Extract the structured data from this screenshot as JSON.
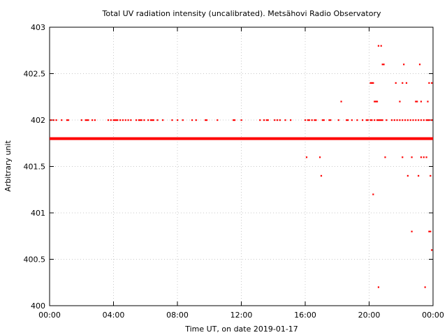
{
  "chart_data": {
    "type": "scatter",
    "title": "Total UV radiation intensity (uncalibrated). Metsähovi Radio Observatory",
    "xlabel": "Time UT, on date 2019-01-17",
    "ylabel": "Arbitrary unit",
    "xlim": [
      "00:00",
      "24:00"
    ],
    "ylim": [
      400,
      403
    ],
    "xticks": [
      "00:00",
      "04:00",
      "08:00",
      "12:00",
      "16:00",
      "20:00",
      "00:00"
    ],
    "yticks": [
      "400",
      "400.5",
      "401",
      "401.5",
      "402",
      "402.5",
      "403"
    ],
    "grid": true,
    "series": [
      {
        "color": "#ff0000",
        "baseline": {
          "y": 401.8,
          "x_range": [
            "00:00",
            "24:00"
          ]
        },
        "points": [
          [
            "00:05",
            402
          ],
          [
            "00:15",
            402
          ],
          [
            "00:25",
            402
          ],
          [
            "00:45",
            402
          ],
          [
            "01:05",
            402
          ],
          [
            "01:10",
            402
          ],
          [
            "02:00",
            402
          ],
          [
            "02:15",
            402
          ],
          [
            "02:20",
            402
          ],
          [
            "02:25",
            402
          ],
          [
            "02:40",
            402
          ],
          [
            "02:50",
            402
          ],
          [
            "03:40",
            402
          ],
          [
            "03:50",
            402
          ],
          [
            "04:00",
            402
          ],
          [
            "04:05",
            402
          ],
          [
            "04:10",
            402
          ],
          [
            "04:15",
            402
          ],
          [
            "04:25",
            402
          ],
          [
            "04:35",
            402
          ],
          [
            "04:45",
            402
          ],
          [
            "04:55",
            402
          ],
          [
            "05:05",
            402
          ],
          [
            "05:25",
            402
          ],
          [
            "05:35",
            402
          ],
          [
            "05:40",
            402
          ],
          [
            "05:45",
            402
          ],
          [
            "05:55",
            402
          ],
          [
            "06:10",
            402
          ],
          [
            "06:20",
            402
          ],
          [
            "06:25",
            402
          ],
          [
            "06:30",
            402
          ],
          [
            "06:45",
            402
          ],
          [
            "07:05",
            402
          ],
          [
            "07:40",
            402
          ],
          [
            "08:00",
            402
          ],
          [
            "08:20",
            402
          ],
          [
            "08:55",
            402
          ],
          [
            "09:10",
            402
          ],
          [
            "09:45",
            402
          ],
          [
            "09:50",
            402
          ],
          [
            "10:30",
            402
          ],
          [
            "11:30",
            402
          ],
          [
            "11:35",
            402
          ],
          [
            "12:00",
            402
          ],
          [
            "13:10",
            402
          ],
          [
            "13:25",
            402
          ],
          [
            "13:35",
            402
          ],
          [
            "13:40",
            402
          ],
          [
            "14:05",
            402
          ],
          [
            "14:15",
            402
          ],
          [
            "14:25",
            402
          ],
          [
            "14:45",
            402
          ],
          [
            "15:05",
            402
          ],
          [
            "16:00",
            402
          ],
          [
            "16:10",
            402
          ],
          [
            "16:15",
            402
          ],
          [
            "16:25",
            402
          ],
          [
            "16:35",
            402
          ],
          [
            "16:40",
            402
          ],
          [
            "17:05",
            402
          ],
          [
            "17:10",
            402
          ],
          [
            "17:30",
            402
          ],
          [
            "17:35",
            402
          ],
          [
            "18:05",
            402
          ],
          [
            "18:35",
            402
          ],
          [
            "18:40",
            402
          ],
          [
            "18:55",
            402
          ],
          [
            "19:15",
            402
          ],
          [
            "19:35",
            402
          ],
          [
            "19:50",
            402
          ],
          [
            "19:55",
            402
          ],
          [
            "20:05",
            402
          ],
          [
            "20:10",
            402
          ],
          [
            "20:20",
            402
          ],
          [
            "20:30",
            402
          ],
          [
            "20:35",
            402
          ],
          [
            "20:45",
            402
          ],
          [
            "20:50",
            402
          ],
          [
            "21:05",
            402
          ],
          [
            "21:25",
            402
          ],
          [
            "21:35",
            402
          ],
          [
            "21:45",
            402
          ],
          [
            "21:55",
            402
          ],
          [
            "22:05",
            402
          ],
          [
            "22:15",
            402
          ],
          [
            "22:25",
            402
          ],
          [
            "22:35",
            402
          ],
          [
            "22:45",
            402
          ],
          [
            "22:55",
            402
          ],
          [
            "23:05",
            402
          ],
          [
            "23:15",
            402
          ],
          [
            "23:25",
            402
          ],
          [
            "23:35",
            402
          ],
          [
            "23:45",
            402
          ],
          [
            "23:55",
            402
          ],
          [
            "16:05",
            401.6
          ],
          [
            "16:55",
            401.6
          ],
          [
            "17:00",
            401.4
          ],
          [
            "18:15",
            402.2
          ],
          [
            "20:05",
            402.4
          ],
          [
            "20:10",
            402.4
          ],
          [
            "20:15",
            402.4
          ],
          [
            "20:20",
            402.2
          ],
          [
            "20:25",
            402.2
          ],
          [
            "20:30",
            402.2
          ],
          [
            "20:35",
            402.8
          ],
          [
            "20:40",
            402
          ],
          [
            "20:45",
            402.8
          ],
          [
            "20:50",
            402.6
          ],
          [
            "20:55",
            402.6
          ],
          [
            "20:15",
            401.2
          ],
          [
            "20:35",
            400.2
          ],
          [
            "21:00",
            401.6
          ],
          [
            "21:40",
            402.4
          ],
          [
            "21:55",
            402.2
          ],
          [
            "22:05",
            402.4
          ],
          [
            "22:05",
            401.6
          ],
          [
            "22:10",
            402.6
          ],
          [
            "22:20",
            402.4
          ],
          [
            "22:25",
            401.4
          ],
          [
            "22:40",
            401.6
          ],
          [
            "22:40",
            400.8
          ],
          [
            "22:55",
            402.2
          ],
          [
            "23:00",
            402.2
          ],
          [
            "23:05",
            401.4
          ],
          [
            "23:10",
            402.6
          ],
          [
            "23:15",
            402.2
          ],
          [
            "23:15",
            401.6
          ],
          [
            "23:25",
            401.6
          ],
          [
            "23:30",
            400.2
          ],
          [
            "23:35",
            401.6
          ],
          [
            "23:40",
            402.2
          ],
          [
            "23:40",
            402
          ],
          [
            "23:45",
            402.4
          ],
          [
            "23:45",
            400.8
          ],
          [
            "23:50",
            401.4
          ],
          [
            "23:55",
            402.4
          ],
          [
            "23:50",
            400.8
          ],
          [
            "23:55",
            400.6
          ]
        ]
      }
    ]
  }
}
